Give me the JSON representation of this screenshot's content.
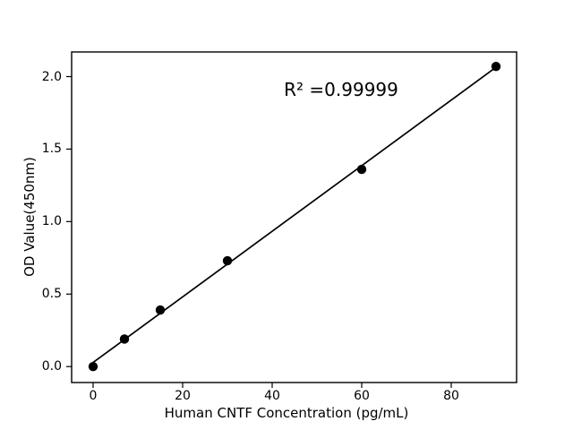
{
  "chart_data": {
    "type": "scatter",
    "title": "",
    "xlabel": "Human CNTF Concentration (pg/mL)",
    "ylabel": "OD Value(450nm)",
    "annotation": {
      "text": "R² =0.99999"
    },
    "r_squared": "0.99999",
    "points": {
      "x": [
        0,
        7,
        15,
        30,
        60,
        90
      ],
      "y": [
        0.0,
        0.19,
        0.39,
        0.73,
        1.36,
        2.07
      ]
    },
    "fit_line": true,
    "xlim": [
      -4.8,
      94.6
    ],
    "ylim": [
      -0.11,
      2.17
    ],
    "xticks": {
      "values": [
        0,
        20,
        40,
        60,
        80
      ],
      "labels": [
        "0",
        "20",
        "40",
        "60",
        "80"
      ]
    },
    "yticks": {
      "values": [
        0.0,
        0.5,
        1.0,
        1.5,
        2.0
      ],
      "labels": [
        "0.0",
        "0.5",
        "1.0",
        "1.5",
        "2.0"
      ]
    },
    "grid": false,
    "legend": null,
    "colors": {
      "marker": "#000000",
      "line": "#000000",
      "axis": "#000000",
      "text": "#000000",
      "background": "#ffffff"
    }
  }
}
